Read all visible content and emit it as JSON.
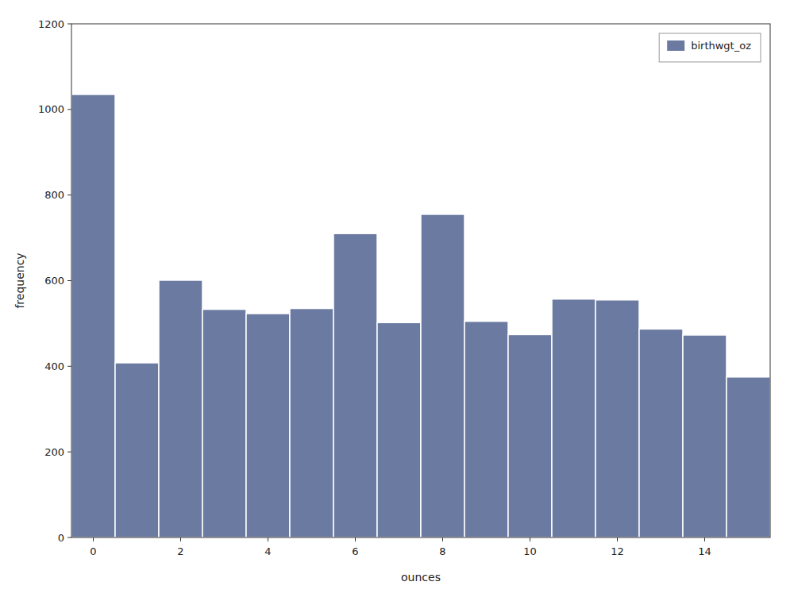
{
  "chart_data": {
    "type": "bar",
    "xlabel": "ounces",
    "ylabel": "frequency",
    "x": [
      0,
      1,
      2,
      3,
      4,
      5,
      6,
      7,
      8,
      9,
      10,
      11,
      12,
      13,
      14,
      15
    ],
    "series": [
      {
        "name": "birthwgt_oz",
        "color": "#6b7aa1",
        "values": [
          1035,
          408,
          601,
          533,
          523,
          535,
          710,
          502,
          755,
          505,
          474,
          557,
          555,
          487,
          473,
          375
        ]
      }
    ],
    "xlim": [
      -0.5,
      15.5
    ],
    "ylim": [
      0,
      1200
    ],
    "xticks": [
      0,
      2,
      4,
      6,
      8,
      10,
      12,
      14
    ],
    "yticks": [
      0,
      200,
      400,
      600,
      800,
      1000,
      1200
    ],
    "grid": false,
    "legend": "upper right"
  }
}
